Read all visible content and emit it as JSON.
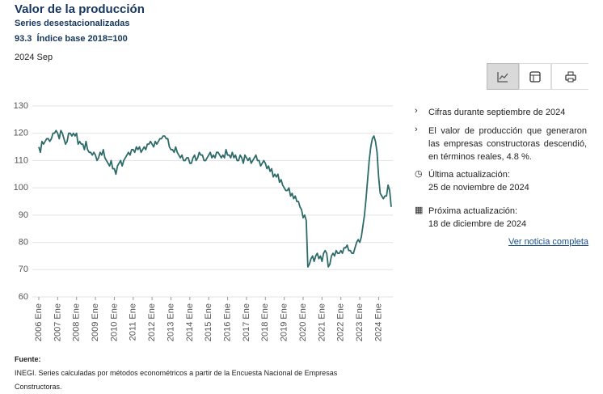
{
  "header": {
    "title": "Valor de la producción",
    "subtitle": "Series desestacionalizadas",
    "value": "93.3",
    "unit": "Índice base 2018=100",
    "period": "2024 Sep"
  },
  "chart_data": {
    "type": "line",
    "color": "#2d6b69",
    "grid": true,
    "ylim": [
      60,
      130
    ],
    "yticks": [
      60,
      70,
      80,
      90,
      100,
      110,
      120,
      130
    ],
    "categories": [
      "2006 Ene",
      null,
      null,
      null,
      null,
      null,
      null,
      null,
      null,
      null,
      null,
      null,
      "2007 Ene",
      null,
      null,
      null,
      null,
      null,
      null,
      null,
      null,
      null,
      null,
      null,
      "2008 Ene",
      null,
      null,
      null,
      null,
      null,
      null,
      null,
      null,
      null,
      null,
      null,
      "2009 Ene",
      null,
      null,
      null,
      null,
      null,
      null,
      null,
      null,
      null,
      null,
      null,
      "2010 Ene",
      null,
      null,
      null,
      null,
      null,
      null,
      null,
      null,
      null,
      null,
      null,
      "2011 Ene",
      null,
      null,
      null,
      null,
      null,
      null,
      null,
      null,
      null,
      null,
      null,
      "2012 Ene",
      null,
      null,
      null,
      null,
      null,
      null,
      null,
      null,
      null,
      null,
      null,
      "2013 Ene",
      null,
      null,
      null,
      null,
      null,
      null,
      null,
      null,
      null,
      null,
      null,
      "2014 Ene",
      null,
      null,
      null,
      null,
      null,
      null,
      null,
      null,
      null,
      null,
      null,
      "2015 Ene",
      null,
      null,
      null,
      null,
      null,
      null,
      null,
      null,
      null,
      null,
      null,
      "2016 Ene",
      null,
      null,
      null,
      null,
      null,
      null,
      null,
      null,
      null,
      null,
      null,
      "2017 Ene",
      null,
      null,
      null,
      null,
      null,
      null,
      null,
      null,
      null,
      null,
      null,
      "2018 Ene",
      null,
      null,
      null,
      null,
      null,
      null,
      null,
      null,
      null,
      null,
      null,
      "2019 Ene",
      null,
      null,
      null,
      null,
      null,
      null,
      null,
      null,
      null,
      null,
      null,
      "2020 Ene",
      null,
      null,
      null,
      null,
      null,
      null,
      null,
      null,
      null,
      null,
      null,
      "2021 Ene",
      null,
      null,
      null,
      null,
      null,
      null,
      null,
      null,
      null,
      null,
      null,
      "2022 Ene",
      null,
      null,
      null,
      null,
      null,
      null,
      null,
      null,
      null,
      null,
      null,
      "2023 Ene",
      null,
      null,
      null,
      null,
      null,
      null,
      null,
      null,
      null,
      null,
      null,
      "2024 Ene",
      null,
      null,
      null,
      null,
      null,
      null,
      null,
      null
    ],
    "values": [
      115,
      113,
      117,
      116,
      117,
      118,
      118,
      117,
      118,
      120,
      120,
      121,
      120,
      118,
      121,
      120,
      118,
      116,
      117,
      120,
      120,
      119,
      120,
      119,
      120,
      116,
      117,
      116,
      116,
      114,
      117,
      114,
      113,
      113,
      112,
      113,
      112,
      110,
      111,
      113,
      112,
      114,
      111,
      110,
      109,
      108,
      110,
      107,
      107,
      105,
      108,
      109,
      110,
      108,
      110,
      111,
      112,
      113,
      112,
      114,
      114,
      113,
      115,
      114,
      115,
      113,
      114,
      115,
      114,
      116,
      116,
      117,
      116,
      115,
      117,
      116,
      117,
      118,
      118,
      119,
      119,
      118,
      118,
      115,
      114,
      114,
      113,
      115,
      113,
      112,
      111,
      112,
      110,
      110,
      111,
      111,
      109,
      109,
      111,
      112,
      110,
      111,
      113,
      112,
      112,
      110,
      110,
      111,
      112,
      113,
      111,
      112,
      111,
      113,
      113,
      112,
      111,
      112,
      111,
      114,
      112,
      112,
      111,
      113,
      111,
      112,
      110,
      110,
      112,
      111,
      109,
      112,
      111,
      110,
      111,
      109,
      110,
      111,
      112,
      110,
      110,
      108,
      109,
      110,
      109,
      107,
      108,
      106,
      107,
      104,
      105,
      104,
      105,
      102,
      103,
      101,
      100,
      99,
      99,
      100,
      97,
      98,
      96,
      97,
      95,
      95,
      93,
      92,
      89,
      90,
      88,
      71,
      72,
      74,
      75,
      73,
      75,
      76,
      74,
      75,
      73,
      76,
      77,
      76,
      71,
      72,
      75,
      76,
      75,
      77,
      76,
      76,
      77,
      76,
      78,
      78,
      79,
      77,
      77,
      76,
      76,
      78,
      80,
      81,
      80,
      82,
      86,
      90,
      96,
      103,
      110,
      115,
      118,
      119,
      117,
      113,
      104,
      98,
      97,
      96,
      97,
      97,
      101,
      99,
      93
    ]
  },
  "notes": {
    "period_note": "Cifras durante septiembre de 2024",
    "summary": "El valor de producción que generaron las empresas constructoras descendió, en términos reales, 4.8 %.",
    "last_update_label": "Última actualización:",
    "last_update": "25 de noviembre de 2024",
    "next_update_label": "Próxima actualización:",
    "next_update": "18 de diciembre de 2024",
    "link": "Ver noticia completa"
  },
  "source": {
    "label": "Fuente:",
    "text": "INEGI. Series calculadas por métodos econométricos a partir de la Encuesta Nacional de Empresas Constructoras."
  }
}
